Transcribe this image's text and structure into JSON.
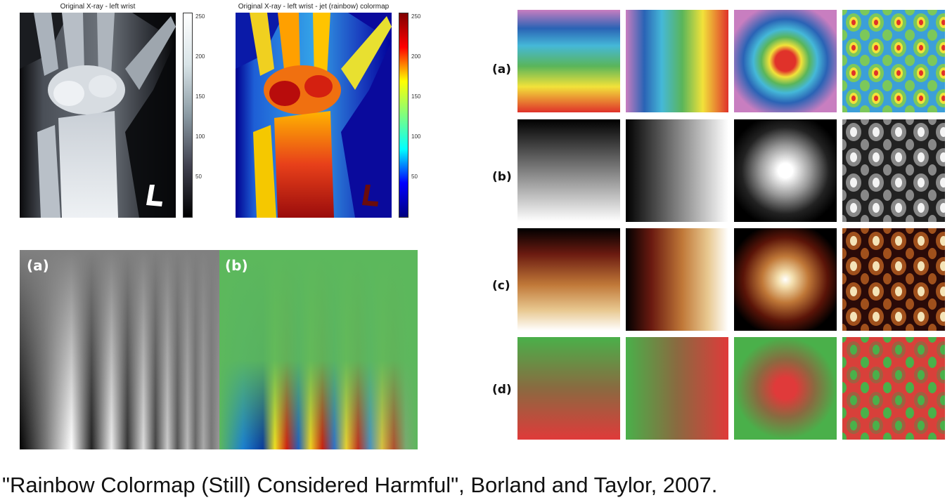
{
  "xray_left": {
    "title": "Original X-ray - left wrist",
    "marker": "L"
  },
  "xray_right": {
    "title": "Original X-ray - left wrist - jet (rainbow) colormap",
    "marker": "L"
  },
  "colorbar_ticks": [
    "250",
    "200",
    "150",
    "100",
    "50"
  ],
  "stripe_panel": {
    "label_a": "(a)",
    "label_b": "(b)"
  },
  "grid": {
    "row_labels": [
      "(a)",
      "(b)",
      "(c)",
      "(d)"
    ],
    "colormaps": [
      "rainbow",
      "grayscale",
      "heat",
      "green-red"
    ],
    "patterns": [
      "vertical-gradient",
      "horizontal-gradient",
      "radial",
      "bumps"
    ]
  },
  "caption": "\"Rainbow Colormap (Still) Considered Harmful\", Borland and Taylor, 2007.",
  "colors": {
    "jet_low": "#00007f",
    "jet_high": "#7f0000",
    "gray_bg": "#808080",
    "green_bg": "#5cb85c"
  }
}
